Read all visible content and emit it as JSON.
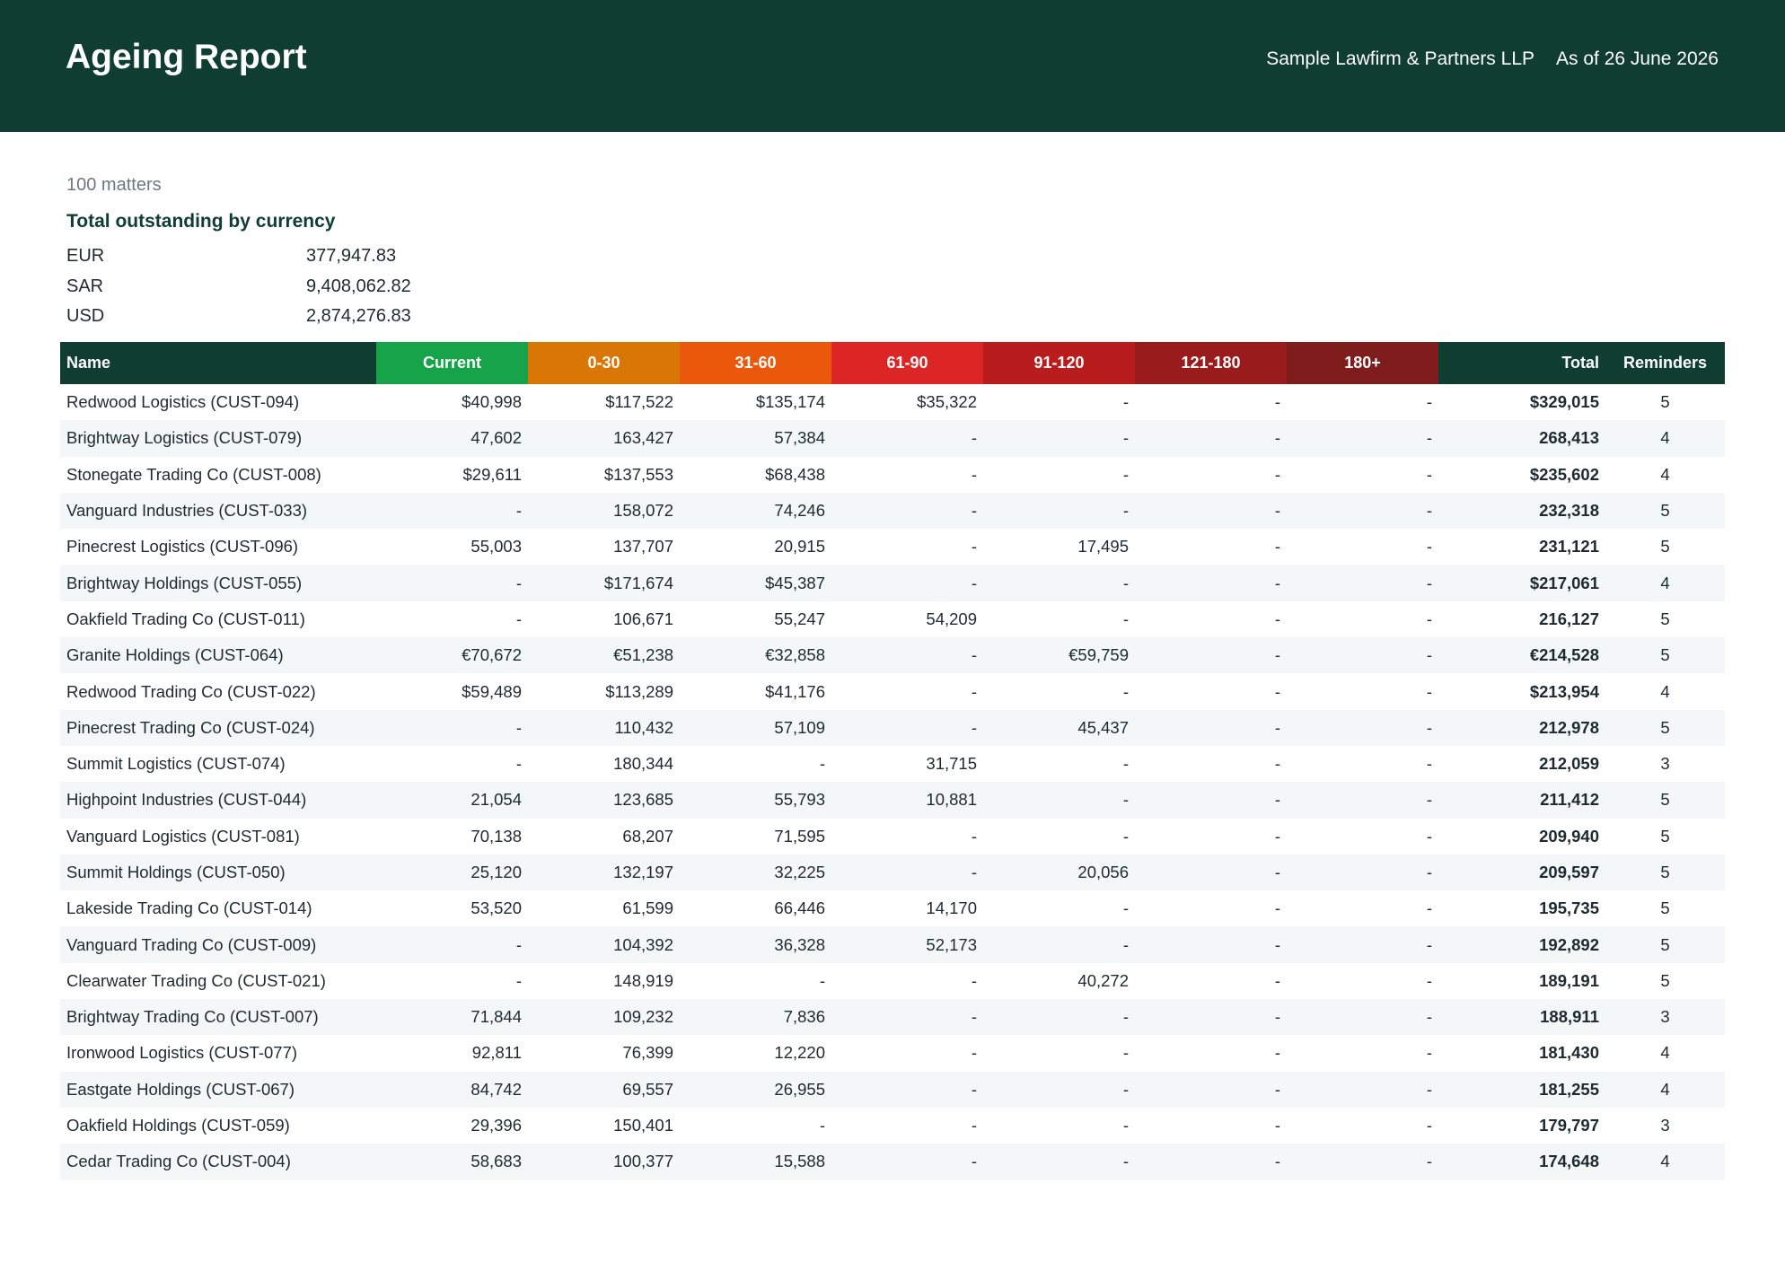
{
  "header": {
    "title": "Ageing Report",
    "firm": "Sample Lawfirm & Partners LLP",
    "as_of": "As of 26 June 2026"
  },
  "summary": {
    "matters": "100 matters",
    "totals_heading": "Total outstanding by currency",
    "currencies": [
      {
        "code": "EUR",
        "amount": "377,947.83"
      },
      {
        "code": "SAR",
        "amount": "9,408,062.82"
      },
      {
        "code": "USD",
        "amount": "2,874,276.83"
      }
    ]
  },
  "table": {
    "columns": [
      {
        "label": "Name",
        "color": "#0f3d31"
      },
      {
        "label": "Current",
        "color": "#16a34a"
      },
      {
        "label": "0-30",
        "color": "#d97706"
      },
      {
        "label": "31-60",
        "color": "#ea580c"
      },
      {
        "label": "61-90",
        "color": "#dc2626"
      },
      {
        "label": "91-120",
        "color": "#b91c1c"
      },
      {
        "label": "121-180",
        "color": "#991b1b"
      },
      {
        "label": "180+",
        "color": "#7f1d1d"
      },
      {
        "label": "Total",
        "color": "#0f3d31"
      },
      {
        "label": "Reminders",
        "color": "#0f3d31"
      }
    ],
    "rows": [
      [
        "Redwood Logistics (CUST-094)",
        "$40,998",
        "$117,522",
        "$135,174",
        "$35,322",
        "-",
        "-",
        "-",
        "$329,015",
        "5"
      ],
      [
        "Brightway Logistics (CUST-079)",
        "47,602",
        "163,427",
        "57,384",
        "-",
        "-",
        "-",
        "-",
        "268,413",
        "4"
      ],
      [
        "Stonegate Trading Co (CUST-008)",
        "$29,611",
        "$137,553",
        "$68,438",
        "-",
        "-",
        "-",
        "-",
        "$235,602",
        "4"
      ],
      [
        "Vanguard Industries (CUST-033)",
        "-",
        "158,072",
        "74,246",
        "-",
        "-",
        "-",
        "-",
        "232,318",
        "5"
      ],
      [
        "Pinecrest Logistics (CUST-096)",
        "55,003",
        "137,707",
        "20,915",
        "-",
        "17,495",
        "-",
        "-",
        "231,121",
        "5"
      ],
      [
        "Brightway Holdings (CUST-055)",
        "-",
        "$171,674",
        "$45,387",
        "-",
        "-",
        "-",
        "-",
        "$217,061",
        "4"
      ],
      [
        "Oakfield Trading Co (CUST-011)",
        "-",
        "106,671",
        "55,247",
        "54,209",
        "-",
        "-",
        "-",
        "216,127",
        "5"
      ],
      [
        "Granite Holdings (CUST-064)",
        "€70,672",
        "€51,238",
        "€32,858",
        "-",
        "€59,759",
        "-",
        "-",
        "€214,528",
        "5"
      ],
      [
        "Redwood Trading Co (CUST-022)",
        "$59,489",
        "$113,289",
        "$41,176",
        "-",
        "-",
        "-",
        "-",
        "$213,954",
        "4"
      ],
      [
        "Pinecrest Trading Co (CUST-024)",
        "-",
        "110,432",
        "57,109",
        "-",
        "45,437",
        "-",
        "-",
        "212,978",
        "5"
      ],
      [
        "Summit Logistics (CUST-074)",
        "-",
        "180,344",
        "-",
        "31,715",
        "-",
        "-",
        "-",
        "212,059",
        "3"
      ],
      [
        "Highpoint Industries (CUST-044)",
        "21,054",
        "123,685",
        "55,793",
        "10,881",
        "-",
        "-",
        "-",
        "211,412",
        "5"
      ],
      [
        "Vanguard Logistics (CUST-081)",
        "70,138",
        "68,207",
        "71,595",
        "-",
        "-",
        "-",
        "-",
        "209,940",
        "5"
      ],
      [
        "Summit Holdings (CUST-050)",
        "25,120",
        "132,197",
        "32,225",
        "-",
        "20,056",
        "-",
        "-",
        "209,597",
        "5"
      ],
      [
        "Lakeside Trading Co (CUST-014)",
        "53,520",
        "61,599",
        "66,446",
        "14,170",
        "-",
        "-",
        "-",
        "195,735",
        "5"
      ],
      [
        "Vanguard Trading Co (CUST-009)",
        "-",
        "104,392",
        "36,328",
        "52,173",
        "-",
        "-",
        "-",
        "192,892",
        "5"
      ],
      [
        "Clearwater Trading Co (CUST-021)",
        "-",
        "148,919",
        "-",
        "-",
        "40,272",
        "-",
        "-",
        "189,191",
        "5"
      ],
      [
        "Brightway Trading Co (CUST-007)",
        "71,844",
        "109,232",
        "7,836",
        "-",
        "-",
        "-",
        "-",
        "188,911",
        "3"
      ],
      [
        "Ironwood Logistics (CUST-077)",
        "92,811",
        "76,399",
        "12,220",
        "-",
        "-",
        "-",
        "-",
        "181,430",
        "4"
      ],
      [
        "Eastgate Holdings (CUST-067)",
        "84,742",
        "69,557",
        "26,955",
        "-",
        "-",
        "-",
        "-",
        "181,255",
        "4"
      ],
      [
        "Oakfield Holdings (CUST-059)",
        "29,396",
        "150,401",
        "-",
        "-",
        "-",
        "-",
        "-",
        "179,797",
        "3"
      ],
      [
        "Cedar Trading Co (CUST-004)",
        "58,683",
        "100,377",
        "15,588",
        "-",
        "-",
        "-",
        "-",
        "174,648",
        "4"
      ]
    ]
  }
}
